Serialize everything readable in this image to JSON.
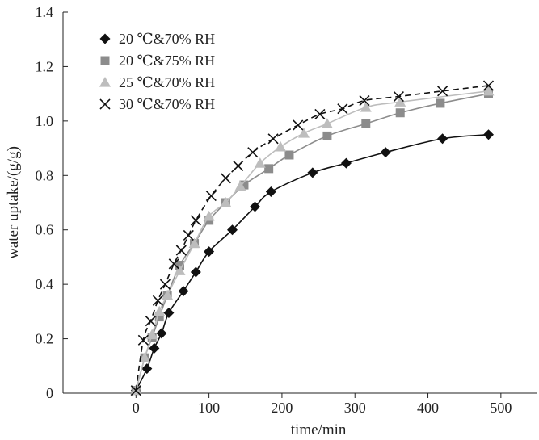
{
  "chart_data": {
    "type": "line",
    "title": "",
    "xlabel": "time/min",
    "ylabel": "water uptake/(g/g)",
    "xlim": [
      -100,
      550
    ],
    "ylim": [
      0,
      1.4
    ],
    "x_ticks": [
      0,
      100,
      200,
      300,
      400,
      500
    ],
    "x_tick_labels": [
      "0",
      "100",
      "200",
      "300",
      "400",
      "500"
    ],
    "y_ticks": [
      0,
      0.2,
      0.4,
      0.6,
      0.8,
      1.0,
      1.2,
      1.4
    ],
    "y_tick_labels": [
      "0",
      "0.2",
      "0.4",
      "0.6",
      "0.8",
      "1.0",
      "1.2",
      "1.4"
    ],
    "grid": false,
    "legend_position": "top-left",
    "series": [
      {
        "name": "20 ℃&70% RH",
        "marker": "diamond",
        "color": "#111111",
        "line": "solid",
        "x": [
          0,
          15,
          25,
          35,
          45,
          65,
          82,
          100,
          132,
          163,
          185,
          242,
          288,
          342,
          420,
          483
        ],
        "y": [
          0.01,
          0.09,
          0.165,
          0.22,
          0.295,
          0.375,
          0.445,
          0.52,
          0.6,
          0.685,
          0.74,
          0.81,
          0.845,
          0.885,
          0.935,
          0.95
        ]
      },
      {
        "name": "20 ℃&75% RH",
        "marker": "square",
        "color": "#8c8c8c",
        "line": "solid",
        "x": [
          0,
          12,
          22,
          32,
          43,
          60,
          80,
          100,
          123,
          148,
          182,
          210,
          262,
          315,
          362,
          417,
          483
        ],
        "y": [
          0.01,
          0.13,
          0.205,
          0.28,
          0.36,
          0.47,
          0.55,
          0.635,
          0.7,
          0.765,
          0.825,
          0.875,
          0.945,
          0.99,
          1.03,
          1.065,
          1.1
        ]
      },
      {
        "name": "25 ℃&70% RH",
        "marker": "triangle",
        "color": "#bdbdbd",
        "line": "solid",
        "x": [
          0,
          12,
          22,
          32,
          43,
          60,
          80,
          100,
          123,
          143,
          170,
          198,
          230,
          262,
          315,
          362,
          483
        ],
        "y": [
          0.01,
          0.13,
          0.215,
          0.3,
          0.36,
          0.45,
          0.55,
          0.65,
          0.7,
          0.76,
          0.845,
          0.905,
          0.955,
          0.99,
          1.05,
          1.07,
          1.11
        ]
      },
      {
        "name": "30 ℃&70% RH",
        "marker": "x",
        "color": "#111111",
        "line": "dashed",
        "x": [
          0,
          10,
          20,
          30,
          40,
          52,
          62,
          72,
          82,
          103,
          123,
          140,
          160,
          188,
          222,
          252,
          283,
          313,
          360,
          420,
          483
        ],
        "y": [
          0.01,
          0.195,
          0.265,
          0.34,
          0.4,
          0.475,
          0.525,
          0.58,
          0.635,
          0.725,
          0.79,
          0.835,
          0.885,
          0.935,
          0.985,
          1.025,
          1.045,
          1.075,
          1.09,
          1.11,
          1.13
        ]
      }
    ]
  }
}
